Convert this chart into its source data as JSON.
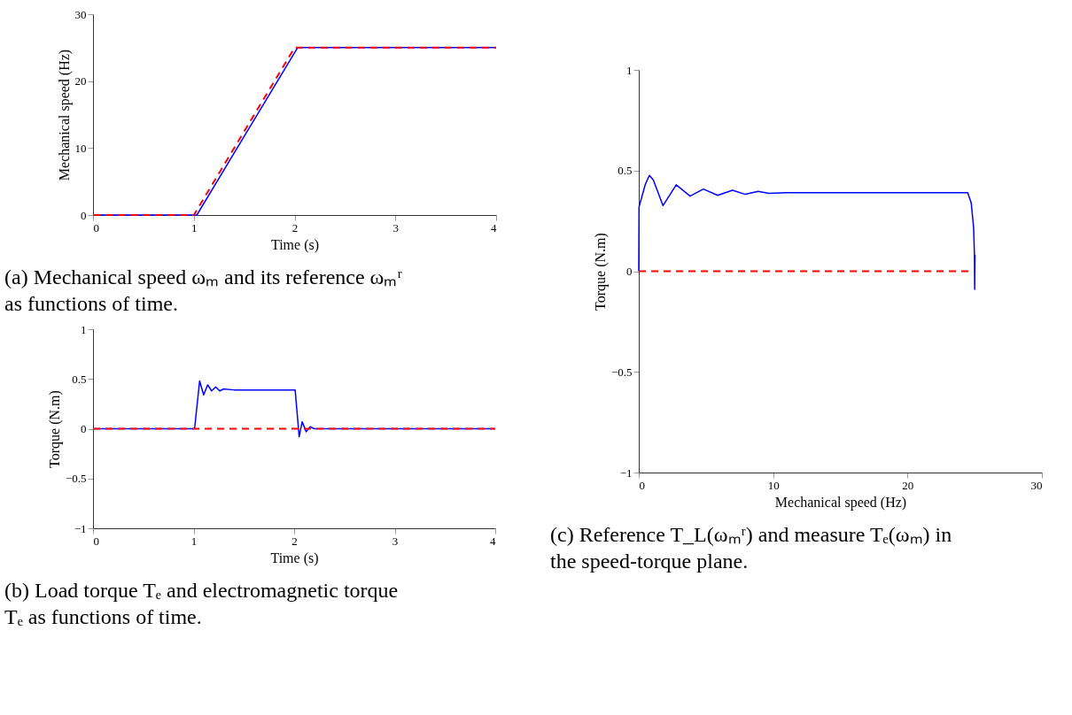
{
  "chart_data": [
    {
      "type": "line",
      "xlabel": "Time (s)",
      "ylabel": "Mechanical speed (Hz)",
      "xlim": [
        0,
        4
      ],
      "ylim": [
        0,
        30
      ],
      "xticks": [
        0,
        1,
        2,
        3,
        4
      ],
      "yticks": [
        0,
        10,
        20,
        30
      ],
      "grid": false,
      "annotations": [
        "(a) Mechanical speed ωₘ and its reference ωₘʳ as functions of time."
      ],
      "series": [
        {
          "color": "#0000ff",
          "line_style": "solid",
          "x": [
            0,
            1.03,
            2.03,
            2.1,
            4
          ],
          "values": [
            0,
            0,
            25,
            25,
            25
          ]
        },
        {
          "color": "#ff0000",
          "line_style": "dashed",
          "x": [
            0,
            1,
            2,
            4
          ],
          "values": [
            0,
            0,
            25,
            25
          ]
        }
      ]
    },
    {
      "type": "line",
      "xlabel": "Time (s)",
      "ylabel": "Torque (N.m)",
      "xlim": [
        0,
        4
      ],
      "ylim": [
        -1,
        1
      ],
      "xticks": [
        0,
        1,
        2,
        3,
        4
      ],
      "yticks": [
        {
          "value": -1,
          "label": "−1"
        },
        {
          "value": -0.5,
          "label": "−0.5"
        },
        0,
        0.5,
        1
      ],
      "grid": false,
      "annotations": [
        "(b) Load torque Tₑ and electromagnetic torque Tₑ as functions of time."
      ],
      "series": [
        {
          "color": "#0000ff",
          "line_style": "solid",
          "x": [
            0,
            1.01,
            1.06,
            1.1,
            1.14,
            1.18,
            1.22,
            1.26,
            1.3,
            1.4,
            2.01,
            2.05,
            2.08,
            2.12,
            2.16,
            2.2,
            2.3,
            4
          ],
          "values": [
            0,
            0,
            0.48,
            0.34,
            0.44,
            0.38,
            0.42,
            0.38,
            0.4,
            0.39,
            0.39,
            -0.08,
            0.07,
            -0.03,
            0.02,
            0,
            0,
            0
          ]
        },
        {
          "color": "#ff0000",
          "line_style": "dashed",
          "x": [
            0,
            4
          ],
          "values": [
            0,
            0
          ]
        }
      ]
    },
    {
      "type": "line",
      "xlabel": "Mechanical speed (Hz)",
      "ylabel": "Torque (N.m)",
      "xlim": [
        0,
        30
      ],
      "ylim": [
        -1,
        1
      ],
      "xticks": [
        0,
        10,
        20,
        30
      ],
      "yticks": [
        {
          "value": -1,
          "label": "−1"
        },
        {
          "value": -0.5,
          "label": "−0.5"
        },
        0,
        0.5,
        1
      ],
      "grid": false,
      "annotations": [
        "(c) Reference T_L(ωₘʳ) and measure Tₑ(ωₘ) in the speed-torque plane."
      ],
      "series": [
        {
          "color": "#0000ff",
          "line_style": "solid",
          "x": [
            0,
            0.02,
            0.48,
            0.79,
            1.08,
            1.8,
            2.79,
            3.82,
            4.81,
            5.87,
            6.97,
            7.93,
            8.88,
            9.69,
            11,
            24.48,
            24.74,
            24.92,
            24.98,
            25,
            25.02,
            25
          ],
          "values": [
            0,
            0.32,
            0.43,
            0.476,
            0.454,
            0.326,
            0.429,
            0.373,
            0.408,
            0.377,
            0.402,
            0.382,
            0.397,
            0.387,
            0.39,
            0.39,
            0.34,
            0.216,
            0.084,
            -0.09,
            0.08,
            0
          ]
        },
        {
          "color": "#ff0000",
          "line_style": "dashed",
          "x": [
            0,
            25
          ],
          "values": [
            0,
            0
          ]
        }
      ]
    }
  ]
}
